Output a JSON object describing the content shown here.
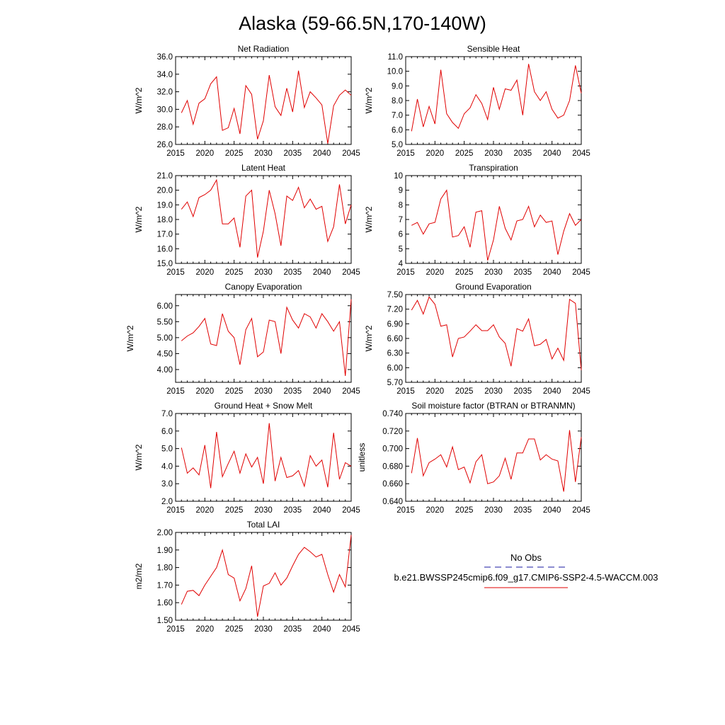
{
  "page": {
    "title": "Alaska (59-66.5N,170-140W)"
  },
  "legend": {
    "obs_label": "No Obs",
    "obs_color": "#1a1aa0",
    "model_label": "b.e21.BWSSP245cmip6.f09_g17.CMIP6-SSP2-4.5-WACCM.003",
    "model_color": "#e00000"
  },
  "chart_data": [
    {
      "id": "net-radiation",
      "type": "line",
      "title": "Net Radiation",
      "ylabel": "W/m^2",
      "xlim": [
        2015,
        2045
      ],
      "ylim": [
        26.0,
        36.0
      ],
      "xticks": [
        "2015",
        "2020",
        "2025",
        "2030",
        "2035",
        "2040",
        "2045"
      ],
      "yticks": [
        "26.0",
        "28.0",
        "30.0",
        "32.0",
        "34.0",
        "36.0"
      ],
      "x": [
        2016,
        2017,
        2018,
        2019,
        2020,
        2021,
        2022,
        2023,
        2024,
        2025,
        2026,
        2027,
        2028,
        2029,
        2030,
        2031,
        2032,
        2033,
        2034,
        2035,
        2036,
        2037,
        2038,
        2039,
        2040,
        2041,
        2042,
        2043,
        2044,
        2045
      ],
      "values": [
        29.6,
        31.0,
        28.3,
        30.7,
        31.2,
        32.9,
        33.7,
        27.6,
        27.9,
        30.1,
        27.2,
        32.7,
        31.7,
        26.6,
        28.7,
        33.9,
        30.3,
        29.3,
        32.4,
        29.7,
        34.4,
        30.2,
        32.0,
        31.3,
        30.5,
        26.1,
        30.4,
        31.6,
        32.2,
        31.6
      ],
      "color": "#e00000"
    },
    {
      "id": "sensible-heat",
      "type": "line",
      "title": "Sensible Heat",
      "ylabel": "W/m^2",
      "xlim": [
        2015,
        2045
      ],
      "ylim": [
        5.0,
        11.0
      ],
      "xticks": [
        "2015",
        "2020",
        "2025",
        "2030",
        "2035",
        "2040",
        "2045"
      ],
      "yticks": [
        "5.0",
        "6.0",
        "7.0",
        "8.0",
        "9.0",
        "10.0",
        "11.0"
      ],
      "x": [
        2016,
        2017,
        2018,
        2019,
        2020,
        2021,
        2022,
        2023,
        2024,
        2025,
        2026,
        2027,
        2028,
        2029,
        2030,
        2031,
        2032,
        2033,
        2034,
        2035,
        2036,
        2037,
        2038,
        2039,
        2040,
        2041,
        2042,
        2043,
        2044,
        2045
      ],
      "values": [
        5.9,
        8.1,
        6.2,
        7.6,
        6.4,
        10.1,
        7.1,
        6.5,
        6.1,
        7.1,
        7.5,
        8.4,
        7.8,
        6.7,
        8.9,
        7.4,
        8.8,
        8.7,
        9.4,
        7.0,
        10.5,
        8.6,
        8.0,
        8.6,
        7.4,
        6.8,
        7.0,
        8.0,
        10.4,
        8.5
      ],
      "color": "#e00000"
    },
    {
      "id": "latent-heat",
      "type": "line",
      "title": "Latent Heat",
      "ylabel": "W/m^2",
      "xlim": [
        2015,
        2045
      ],
      "ylim": [
        15.0,
        21.0
      ],
      "xticks": [
        "2015",
        "2020",
        "2025",
        "2030",
        "2035",
        "2040",
        "2045"
      ],
      "yticks": [
        "15.0",
        "16.0",
        "17.0",
        "18.0",
        "19.0",
        "20.0",
        "21.0"
      ],
      "x": [
        2016,
        2017,
        2018,
        2019,
        2020,
        2021,
        2022,
        2023,
        2024,
        2025,
        2026,
        2027,
        2028,
        2029,
        2030,
        2031,
        2032,
        2033,
        2034,
        2035,
        2036,
        2037,
        2038,
        2039,
        2040,
        2041,
        2042,
        2043,
        2044,
        2045
      ],
      "values": [
        18.7,
        19.2,
        18.2,
        19.5,
        19.7,
        20.0,
        20.7,
        17.7,
        17.7,
        18.1,
        16.1,
        19.6,
        20.0,
        15.4,
        17.2,
        20.0,
        18.4,
        16.2,
        19.6,
        19.3,
        20.2,
        18.8,
        19.4,
        18.7,
        18.9,
        16.5,
        17.5,
        20.4,
        17.7,
        19.0
      ],
      "color": "#e00000"
    },
    {
      "id": "transpiration",
      "type": "line",
      "title": "Transpiration",
      "ylabel": "W/m^2",
      "xlim": [
        2015,
        2045
      ],
      "ylim": [
        4,
        10
      ],
      "xticks": [
        "2015",
        "2020",
        "2025",
        "2030",
        "2035",
        "2040",
        "2045"
      ],
      "yticks": [
        "4",
        "5",
        "6",
        "7",
        "8",
        "9",
        "10"
      ],
      "x": [
        2016,
        2017,
        2018,
        2019,
        2020,
        2021,
        2022,
        2023,
        2024,
        2025,
        2026,
        2027,
        2028,
        2029,
        2030,
        2031,
        2032,
        2033,
        2034,
        2035,
        2036,
        2037,
        2038,
        2039,
        2040,
        2041,
        2042,
        2043,
        2044,
        2045
      ],
      "values": [
        6.6,
        6.8,
        6.0,
        6.7,
        6.8,
        8.4,
        9.0,
        5.8,
        5.9,
        6.5,
        5.1,
        7.5,
        7.6,
        4.2,
        5.6,
        7.9,
        6.4,
        5.6,
        6.9,
        7.0,
        7.9,
        6.5,
        7.3,
        6.8,
        6.9,
        4.6,
        6.2,
        7.4,
        6.6,
        7.0
      ],
      "color": "#e00000"
    },
    {
      "id": "canopy-evaporation",
      "type": "line",
      "title": "Canopy Evaporation",
      "ylabel": "W/m^2",
      "xlim": [
        2015,
        2045
      ],
      "ylim": [
        3.6,
        6.35
      ],
      "xticks": [
        "2015",
        "2020",
        "2025",
        "2030",
        "2035",
        "2040",
        "2045"
      ],
      "yticks": [
        "4.00",
        "4.50",
        "5.00",
        "5.50",
        "6.00"
      ],
      "ytick_values": [
        4.0,
        4.5,
        5.0,
        5.5,
        6.0
      ],
      "x": [
        2016,
        2017,
        2018,
        2019,
        2020,
        2021,
        2022,
        2023,
        2024,
        2025,
        2026,
        2027,
        2028,
        2029,
        2030,
        2031,
        2032,
        2033,
        2034,
        2035,
        2036,
        2037,
        2038,
        2039,
        2040,
        2041,
        2042,
        2043,
        2044,
        2045
      ],
      "values": [
        4.9,
        5.05,
        5.15,
        5.35,
        5.6,
        4.8,
        4.75,
        5.75,
        5.2,
        5.0,
        4.15,
        5.25,
        5.6,
        4.4,
        4.55,
        5.55,
        5.5,
        4.5,
        5.95,
        5.55,
        5.3,
        5.75,
        5.65,
        5.3,
        5.75,
        5.5,
        5.2,
        5.5,
        3.8,
        6.2
      ],
      "color": "#e00000"
    },
    {
      "id": "ground-evaporation",
      "type": "line",
      "title": "Ground Evaporation",
      "ylabel": "W/m^2",
      "xlim": [
        2015,
        2045
      ],
      "ylim": [
        5.7,
        7.5
      ],
      "xticks": [
        "2015",
        "2020",
        "2025",
        "2030",
        "2035",
        "2040",
        "2045"
      ],
      "yticks": [
        "5.70",
        "6.00",
        "6.30",
        "6.60",
        "6.90",
        "7.20",
        "7.50"
      ],
      "x": [
        2016,
        2017,
        2018,
        2019,
        2020,
        2021,
        2022,
        2023,
        2024,
        2025,
        2026,
        2027,
        2028,
        2029,
        2030,
        2031,
        2032,
        2033,
        2034,
        2035,
        2036,
        2037,
        2038,
        2039,
        2040,
        2041,
        2042,
        2043,
        2044,
        2045
      ],
      "values": [
        7.18,
        7.38,
        7.1,
        7.45,
        7.3,
        6.85,
        6.88,
        6.22,
        6.6,
        6.63,
        6.75,
        6.88,
        6.76,
        6.76,
        6.88,
        6.63,
        6.5,
        6.03,
        6.8,
        6.75,
        7.0,
        6.45,
        6.48,
        6.58,
        6.18,
        6.4,
        6.15,
        7.4,
        7.32,
        5.95
      ],
      "color": "#e00000"
    },
    {
      "id": "ground-heat-snow-melt",
      "type": "line",
      "title": "Ground Heat + Snow Melt",
      "ylabel": "W/m^2",
      "xlim": [
        2015,
        2045
      ],
      "ylim": [
        2.0,
        7.0
      ],
      "xticks": [
        "2015",
        "2020",
        "2025",
        "2030",
        "2035",
        "2040",
        "2045"
      ],
      "yticks": [
        "2.0",
        "3.0",
        "4.0",
        "5.0",
        "6.0",
        "7.0"
      ],
      "x": [
        2016,
        2017,
        2018,
        2019,
        2020,
        2021,
        2022,
        2023,
        2024,
        2025,
        2026,
        2027,
        2028,
        2029,
        2030,
        2031,
        2032,
        2033,
        2034,
        2035,
        2036,
        2037,
        2038,
        2039,
        2040,
        2041,
        2042,
        2043,
        2044,
        2045
      ],
      "values": [
        5.05,
        3.6,
        3.9,
        3.5,
        5.2,
        2.75,
        5.95,
        3.4,
        4.15,
        4.85,
        3.6,
        4.7,
        3.95,
        4.5,
        3.0,
        6.45,
        3.15,
        4.5,
        3.35,
        3.45,
        3.75,
        2.85,
        4.6,
        4.0,
        4.35,
        2.8,
        5.9,
        3.25,
        4.2,
        4.0
      ],
      "color": "#e00000"
    },
    {
      "id": "soil-moisture-factor",
      "type": "line",
      "title": "Soil moisture factor (BTRAN or BTRANMN)",
      "ylabel": "unitless",
      "xlim": [
        2015,
        2045
      ],
      "ylim": [
        0.64,
        0.74
      ],
      "xticks": [
        "2015",
        "2020",
        "2025",
        "2030",
        "2035",
        "2040",
        "2045"
      ],
      "yticks": [
        "0.640",
        "0.660",
        "0.680",
        "0.700",
        "0.720",
        "0.740"
      ],
      "x": [
        2016,
        2017,
        2018,
        2019,
        2020,
        2021,
        2022,
        2023,
        2024,
        2025,
        2026,
        2027,
        2028,
        2029,
        2030,
        2031,
        2032,
        2033,
        2034,
        2035,
        2036,
        2037,
        2038,
        2039,
        2040,
        2041,
        2042,
        2043,
        2044,
        2045
      ],
      "values": [
        0.672,
        0.712,
        0.669,
        0.684,
        0.688,
        0.693,
        0.679,
        0.702,
        0.676,
        0.679,
        0.661,
        0.685,
        0.693,
        0.66,
        0.662,
        0.669,
        0.689,
        0.665,
        0.695,
        0.695,
        0.711,
        0.711,
        0.687,
        0.693,
        0.688,
        0.686,
        0.651,
        0.721,
        0.662,
        0.713
      ],
      "color": "#e00000"
    },
    {
      "id": "total-lai",
      "type": "line",
      "title": "Total LAI",
      "ylabel": "m2/m2",
      "xlim": [
        2015,
        2045
      ],
      "ylim": [
        1.5,
        2.0
      ],
      "xticks": [
        "2015",
        "2020",
        "2025",
        "2030",
        "2035",
        "2040",
        "2045"
      ],
      "yticks": [
        "1.50",
        "1.60",
        "1.70",
        "1.80",
        "1.90",
        "2.00"
      ],
      "x": [
        2016,
        2017,
        2018,
        2019,
        2020,
        2021,
        2022,
        2023,
        2024,
        2025,
        2026,
        2027,
        2028,
        2029,
        2030,
        2031,
        2032,
        2033,
        2034,
        2035,
        2036,
        2037,
        2038,
        2039,
        2040,
        2041,
        2042,
        2043,
        2044,
        2045
      ],
      "values": [
        1.59,
        1.665,
        1.67,
        1.64,
        1.7,
        1.75,
        1.8,
        1.9,
        1.76,
        1.74,
        1.61,
        1.68,
        1.81,
        1.52,
        1.695,
        1.71,
        1.77,
        1.7,
        1.74,
        1.81,
        1.875,
        1.915,
        1.89,
        1.86,
        1.875,
        1.76,
        1.66,
        1.76,
        1.69,
        1.985
      ],
      "color": "#e00000"
    }
  ]
}
